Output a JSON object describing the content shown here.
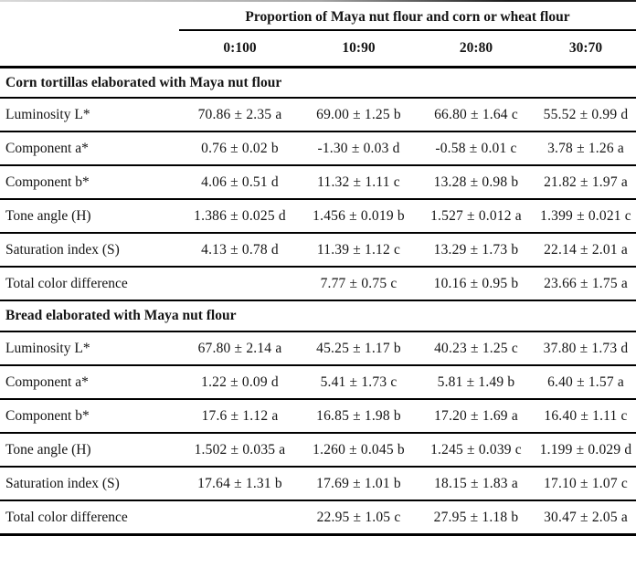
{
  "colors": {
    "background": "#ffffff",
    "text": "#141414",
    "rule": "#000000"
  },
  "table": {
    "spanning_header": "Proportion of Maya nut flour and corn or wheat flour",
    "columns": [
      "0:100",
      "10:90",
      "20:80",
      "30:70"
    ],
    "sections": [
      {
        "title": "Corn tortillas elaborated with Maya nut flour",
        "rows": [
          {
            "label": "Luminosity L*",
            "values": [
              "70.86 ± 2.35 a",
              "69.00 ± 1.25 b",
              "66.80 ± 1.64 c",
              "55.52 ± 0.99 d"
            ]
          },
          {
            "label": "Component a*",
            "values": [
              "0.76 ± 0.02 b",
              "-1.30 ± 0.03 d",
              "-0.58 ± 0.01 c",
              "3.78 ± 1.26 a"
            ]
          },
          {
            "label": "Component b*",
            "values": [
              "4.06 ± 0.51 d",
              "11.32 ± 1.11 c",
              "13.28 ± 0.98 b",
              "21.82 ± 1.97 a"
            ]
          },
          {
            "label": "Tone angle (H)",
            "values": [
              "1.386 ± 0.025 d",
              "1.456 ± 0.019 b",
              "1.527 ± 0.012 a",
              "1.399 ± 0.021 c"
            ]
          },
          {
            "label": "Saturation index (S)",
            "values": [
              "4.13 ± 0.78 d",
              "11.39 ± 1.12 c",
              "13.29 ± 1.73 b",
              "22.14 ± 2.01 a"
            ]
          },
          {
            "label": "Total color difference",
            "values": [
              "",
              "7.77 ± 0.75 c",
              "10.16 ± 0.95 b",
              "23.66 ± 1.75 a"
            ]
          }
        ]
      },
      {
        "title": "Bread elaborated with Maya nut flour",
        "rows": [
          {
            "label": "Luminosity L*",
            "values": [
              "67.80 ± 2.14 a",
              "45.25 ± 1.17 b",
              "40.23 ± 1.25 c",
              "37.80 ± 1.73 d"
            ]
          },
          {
            "label": "Component a*",
            "values": [
              "1.22 ± 0.09 d",
              "5.41 ± 1.73 c",
              "5.81 ± 1.49 b",
              "6.40 ± 1.57 a"
            ]
          },
          {
            "label": "Component b*",
            "values": [
              "17.6 ± 1.12 a",
              "16.85 ± 1.98 b",
              "17.20 ± 1.69 a",
              "16.40 ± 1.11 c"
            ]
          },
          {
            "label": "Tone angle (H)",
            "values": [
              "1.502 ± 0.035 a",
              "1.260 ± 0.045 b",
              "1.245 ± 0.039 c",
              "1.199 ± 0.029 d"
            ]
          },
          {
            "label": "Saturation index (S)",
            "values": [
              "17.64 ± 1.31 b",
              "17.69 ± 1.01 b",
              "18.15 ± 1.83 a",
              "17.10 ± 1.07 c"
            ]
          },
          {
            "label": "Total color difference",
            "values": [
              "",
              "22.95 ± 1.05 c",
              "27.95 ± 1.18 b",
              "30.47 ± 2.05 a"
            ]
          }
        ]
      }
    ]
  }
}
